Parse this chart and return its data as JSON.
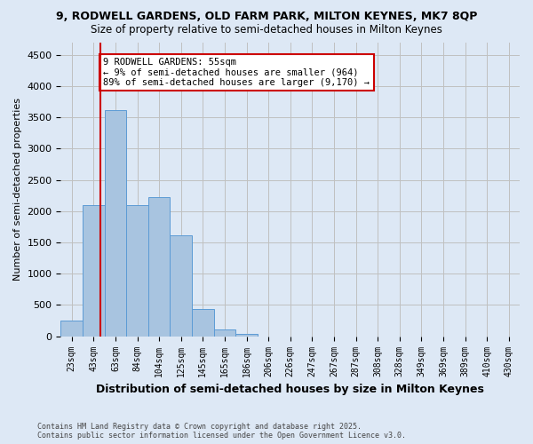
{
  "title1": "9, RODWELL GARDENS, OLD FARM PARK, MILTON KEYNES, MK7 8QP",
  "title2": "Size of property relative to semi-detached houses in Milton Keynes",
  "xlabel": "Distribution of semi-detached houses by size in Milton Keynes",
  "ylabel": "Number of semi-detached properties",
  "footnote": "Contains HM Land Registry data © Crown copyright and database right 2025.\nContains public sector information licensed under the Open Government Licence v3.0.",
  "bin_labels": [
    "23sqm",
    "43sqm",
    "63sqm",
    "84sqm",
    "104sqm",
    "125sqm",
    "145sqm",
    "165sqm",
    "186sqm",
    "206sqm",
    "226sqm",
    "247sqm",
    "267sqm",
    "287sqm",
    "308sqm",
    "328sqm",
    "349sqm",
    "369sqm",
    "389sqm",
    "410sqm",
    "430sqm"
  ],
  "bar_heights": [
    250,
    2100,
    3620,
    2100,
    2220,
    1620,
    430,
    110,
    40,
    0,
    0,
    0,
    0,
    0,
    0,
    0,
    0,
    0,
    0,
    0,
    0
  ],
  "bar_color": "#a8c4e0",
  "bar_edgecolor": "#5b9bd5",
  "grid_color": "#c0c0c0",
  "annotation_text": "9 RODWELL GARDENS: 55sqm\n← 9% of semi-detached houses are smaller (964)\n89% of semi-detached houses are larger (9,170) →",
  "annotation_box_color": "#ffffff",
  "annotation_box_edgecolor": "#cc0000",
  "vline_x_pos": 1.3,
  "vline_color": "#cc0000",
  "ylim": [
    0,
    4700
  ],
  "yticks": [
    0,
    500,
    1000,
    1500,
    2000,
    2500,
    3000,
    3500,
    4000,
    4500
  ],
  "background_color": "#dde8f5"
}
